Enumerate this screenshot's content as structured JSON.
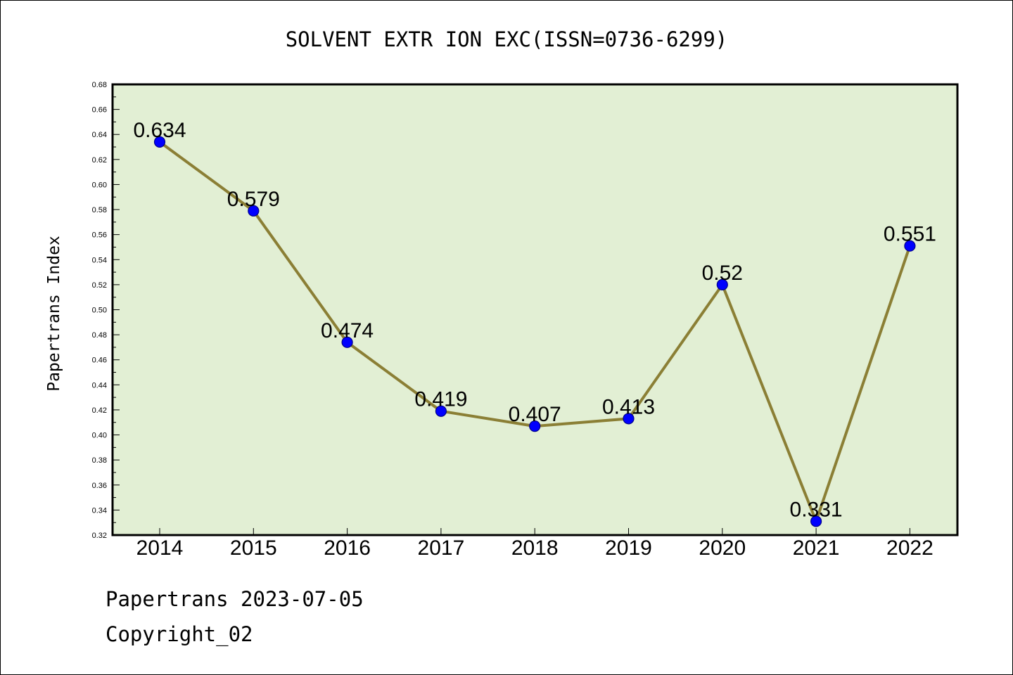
{
  "chart_data": {
    "type": "line",
    "title": "SOLVENT EXTR ION EXC(ISSN=0736-6299)",
    "xlabel": "",
    "ylabel": "Papertrans Index",
    "categories": [
      "2014",
      "2015",
      "2016",
      "2017",
      "2018",
      "2019",
      "2020",
      "2021",
      "2022"
    ],
    "values": [
      0.634,
      0.579,
      0.474,
      0.419,
      0.407,
      0.413,
      0.52,
      0.331,
      0.551
    ],
    "data_labels": [
      "0.634",
      "0.579",
      "0.474",
      "0.419",
      "0.407",
      "0.413",
      "0.52",
      "0.331",
      "0.551"
    ],
    "ylim": [
      0.32,
      0.68
    ],
    "yticks": [
      "0.32",
      "0.34",
      "0.36",
      "0.38",
      "0.40",
      "0.42",
      "0.44",
      "0.46",
      "0.48",
      "0.50",
      "0.52",
      "0.54",
      "0.56",
      "0.58",
      "0.60",
      "0.62",
      "0.64",
      "0.66",
      "0.68"
    ],
    "grid": false,
    "legend": "none",
    "colors": {
      "plot_background": "#e2efd4",
      "line": "#8b7f35",
      "marker": "#0000ff",
      "marker_edge": "#00008b"
    }
  },
  "footer": {
    "line1": "Papertrans 2023-07-05",
    "line2": "Copyright_02"
  }
}
